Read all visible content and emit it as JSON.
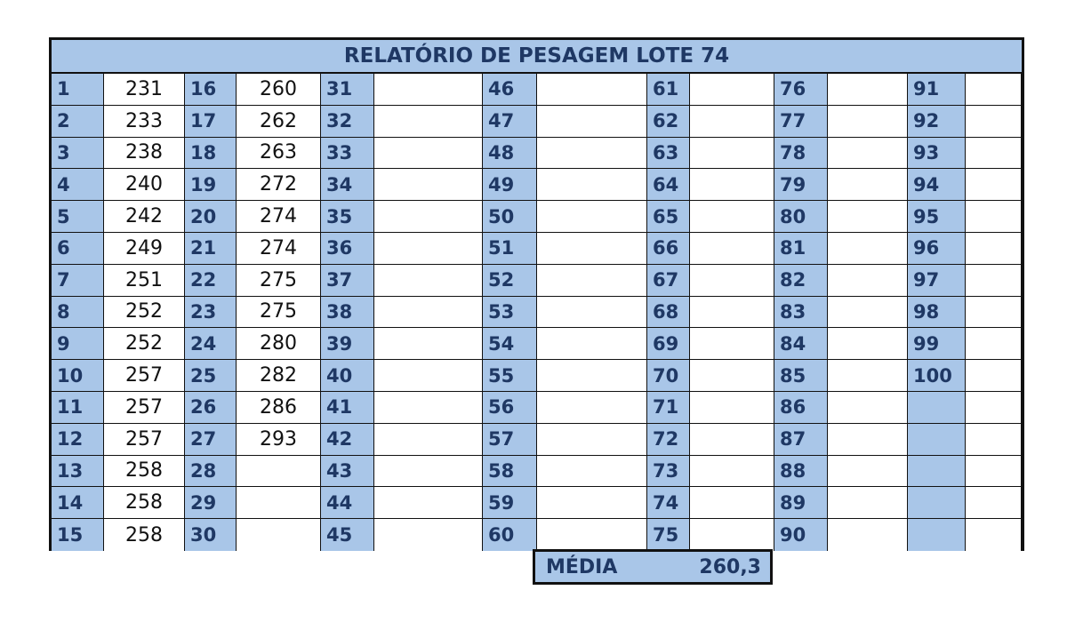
{
  "title": "RELATÓRIO DE PESAGEM LOTE 74",
  "columns": [
    {
      "indices": [
        "1",
        "2",
        "3",
        "4",
        "5",
        "6",
        "7",
        "8",
        "9",
        "10",
        "11",
        "12",
        "13",
        "14",
        "15"
      ],
      "values": [
        "231",
        "233",
        "238",
        "240",
        "242",
        "249",
        "251",
        "252",
        "252",
        "257",
        "257",
        "257",
        "258",
        "258",
        "258"
      ]
    },
    {
      "indices": [
        "16",
        "17",
        "18",
        "19",
        "20",
        "21",
        "22",
        "23",
        "24",
        "25",
        "26",
        "27",
        "28",
        "29",
        "30"
      ],
      "values": [
        "260",
        "262",
        "263",
        "272",
        "274",
        "274",
        "275",
        "275",
        "280",
        "282",
        "286",
        "293",
        "",
        "",
        ""
      ]
    },
    {
      "indices": [
        "31",
        "32",
        "33",
        "34",
        "35",
        "36",
        "37",
        "38",
        "39",
        "40",
        "41",
        "42",
        "43",
        "44",
        "45"
      ],
      "values": [
        "",
        "",
        "",
        "",
        "",
        "",
        "",
        "",
        "",
        "",
        "",
        "",
        "",
        "",
        ""
      ]
    },
    {
      "indices": [
        "46",
        "47",
        "48",
        "49",
        "50",
        "51",
        "52",
        "53",
        "54",
        "55",
        "56",
        "57",
        "58",
        "59",
        "60"
      ],
      "values": [
        "",
        "",
        "",
        "",
        "",
        "",
        "",
        "",
        "",
        "",
        "",
        "",
        "",
        "",
        ""
      ]
    },
    {
      "indices": [
        "61",
        "62",
        "63",
        "64",
        "65",
        "66",
        "67",
        "68",
        "69",
        "70",
        "71",
        "72",
        "73",
        "74",
        "75"
      ],
      "values": [
        "",
        "",
        "",
        "",
        "",
        "",
        "",
        "",
        "",
        "",
        "",
        "",
        "",
        "",
        ""
      ]
    },
    {
      "indices": [
        "76",
        "77",
        "78",
        "79",
        "80",
        "81",
        "82",
        "83",
        "84",
        "85",
        "86",
        "87",
        "88",
        "89",
        "90"
      ],
      "values": [
        "",
        "",
        "",
        "",
        "",
        "",
        "",
        "",
        "",
        "",
        "",
        "",
        "",
        "",
        ""
      ]
    },
    {
      "indices": [
        "91",
        "92",
        "93",
        "94",
        "95",
        "96",
        "97",
        "98",
        "99",
        "100",
        "",
        "",
        "",
        "",
        ""
      ],
      "values": [
        "",
        "",
        "",
        "",
        "",
        "",
        "",
        "",
        "",
        "",
        "",
        "",
        "",
        "",
        ""
      ]
    }
  ],
  "media": {
    "label": "MÉDIA",
    "value": "260,3"
  }
}
